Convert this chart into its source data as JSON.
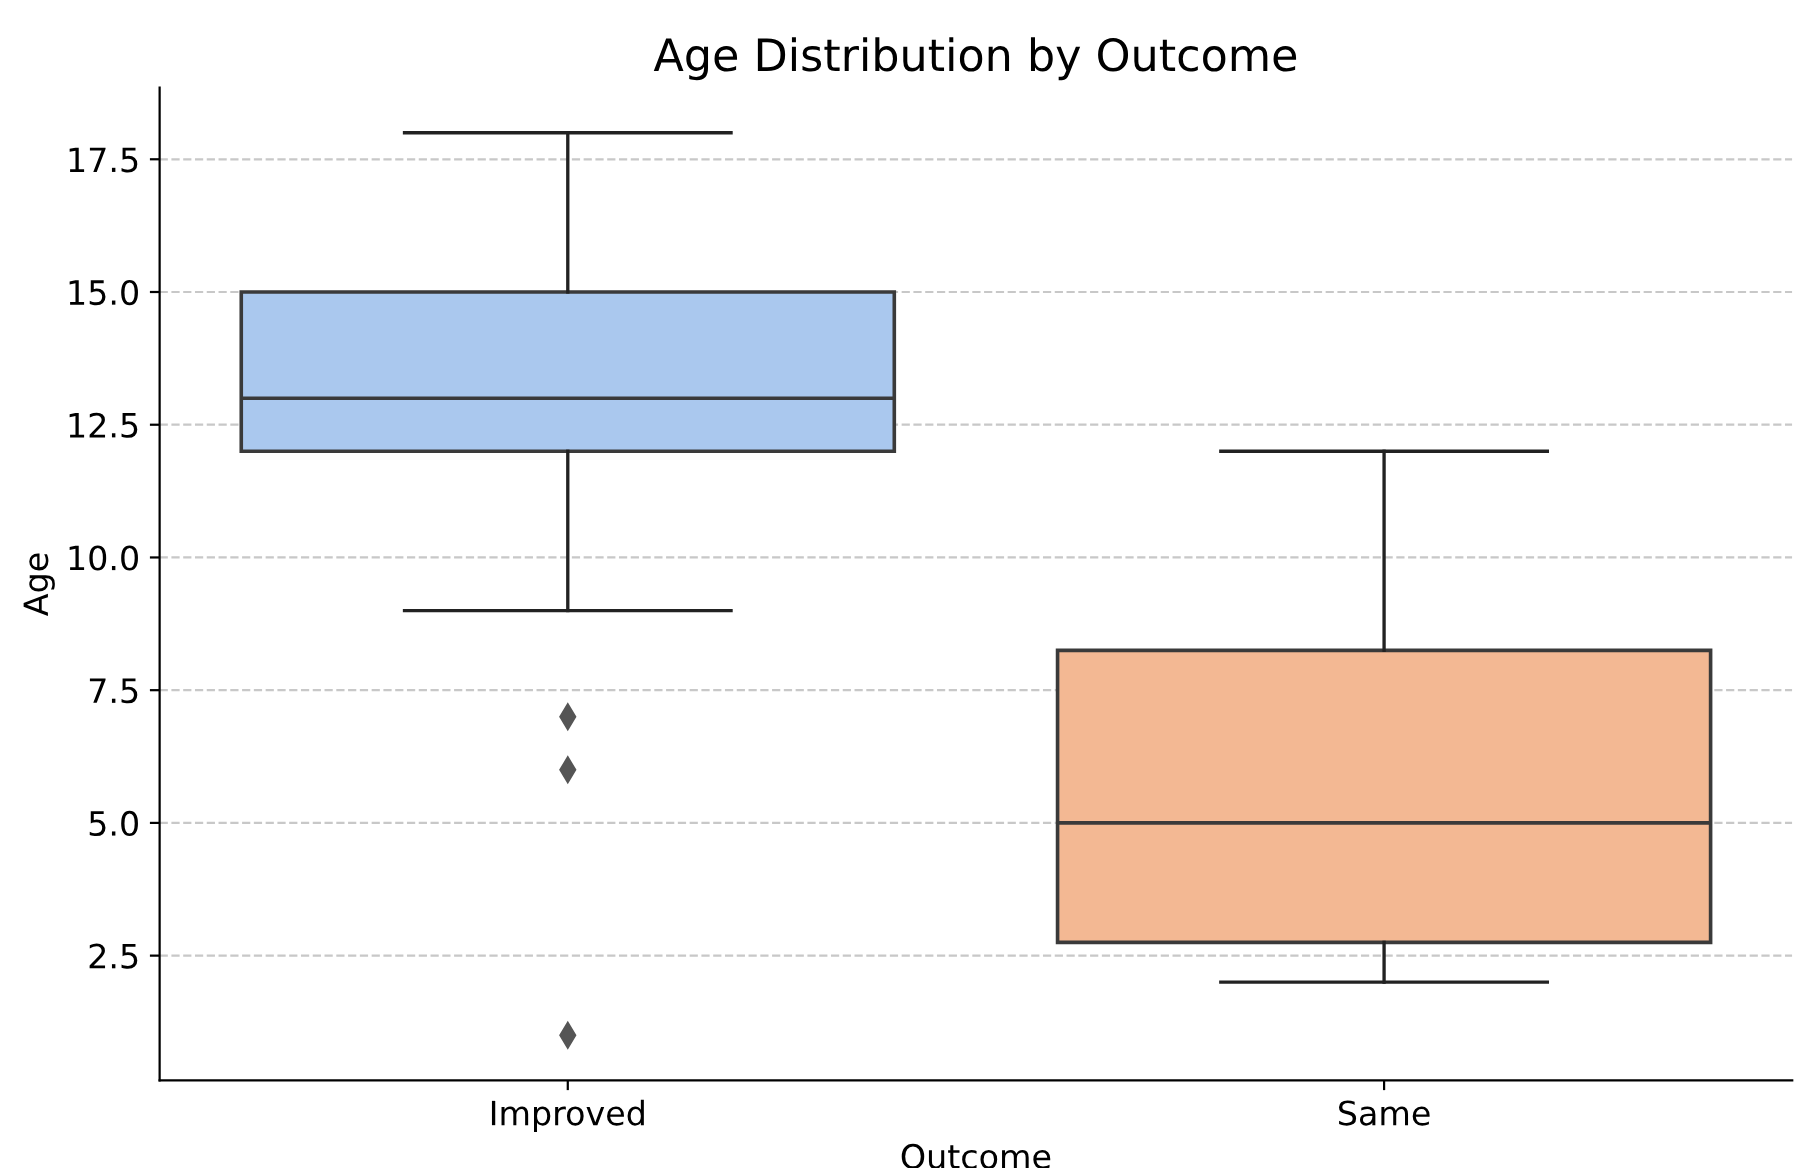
{
  "chart_data": {
    "type": "box",
    "title": "Age Distribution by Outcome",
    "xlabel": "Outcome",
    "ylabel": "Age",
    "categories": [
      "Improved",
      "Same"
    ],
    "boxes": [
      {
        "low": 9,
        "q1": 12,
        "median": 13,
        "q3": 15,
        "high": 18,
        "outliers": [
          7,
          6,
          1
        ]
      },
      {
        "low": 2,
        "q1": 2.75,
        "median": 5,
        "q3": 8.25,
        "high": 12
      }
    ],
    "colors": [
      "#aac8ee",
      "#f3b893"
    ],
    "ylim": [
      0.15,
      18.85
    ],
    "yticks": [
      2.5,
      {
        "value": 5,
        "label": "5.0"
      },
      7.5,
      {
        "value": 10,
        "label": "10.0"
      },
      12.5,
      {
        "value": 15,
        "label": "15.0"
      },
      17.5
    ],
    "grid": "y",
    "marker": "diamond"
  }
}
